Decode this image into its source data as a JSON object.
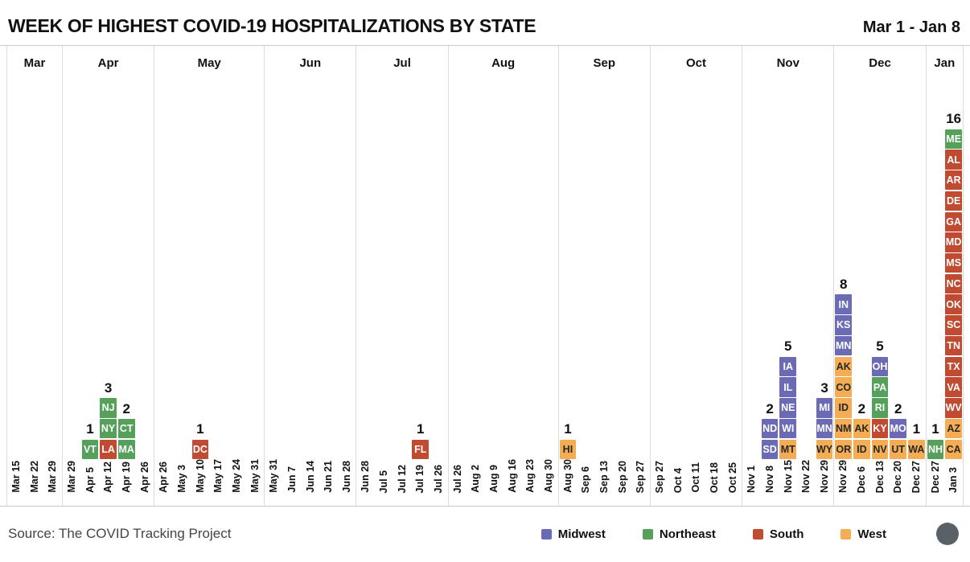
{
  "header": {
    "title": "WEEK OF HIGHEST COVID-19 HOSPITALIZATIONS BY STATE",
    "date_range": "Mar 1 - Jan 8"
  },
  "chart_data": {
    "type": "bar",
    "subtype": "stacked-unit-columns (1 cell = 1 state, stacked per week of peak hospitalizations)",
    "title": "WEEK OF HIGHEST COVID-19 HOSPITALIZATIONS BY STATE",
    "date_range": "Mar 1 - Jan 8",
    "legend_position": "bottom",
    "grid": "monthly panels separated by vertical rules",
    "regions": {
      "MW": {
        "name": "Midwest",
        "color": "#6a6bb4",
        "text": "#ffffff"
      },
      "NE": {
        "name": "Northeast",
        "color": "#55a05a",
        "text": "#ffffff"
      },
      "S": {
        "name": "South",
        "color": "#c04b31",
        "text": "#ffffff"
      },
      "W": {
        "name": "West",
        "color": "#f4ad54",
        "text": "#272727"
      }
    },
    "states_order_note": "states listed top-to-bottom as displayed in each stack",
    "panels": [
      {
        "month": "Mar",
        "weeks": [
          {
            "label": "Mar 15",
            "states": []
          },
          {
            "label": "Mar 22",
            "states": []
          },
          {
            "label": "Mar 29",
            "states": []
          }
        ]
      },
      {
        "month": "Apr",
        "weeks": [
          {
            "label": "Mar 29",
            "states": []
          },
          {
            "label": "Apr 5",
            "count": 1,
            "states": [
              {
                "code": "VT",
                "region": "NE"
              }
            ]
          },
          {
            "label": "Apr 12",
            "count": 3,
            "states": [
              {
                "code": "NJ",
                "region": "NE"
              },
              {
                "code": "NY",
                "region": "NE"
              },
              {
                "code": "LA",
                "region": "S"
              }
            ]
          },
          {
            "label": "Apr 19",
            "count": 2,
            "states": [
              {
                "code": "CT",
                "region": "NE"
              },
              {
                "code": "MA",
                "region": "NE"
              }
            ]
          },
          {
            "label": "Apr 26",
            "states": []
          }
        ]
      },
      {
        "month": "May",
        "weeks": [
          {
            "label": "Apr 26",
            "states": []
          },
          {
            "label": "May 3",
            "states": []
          },
          {
            "label": "May 10",
            "count": 1,
            "states": [
              {
                "code": "DC",
                "region": "S"
              }
            ]
          },
          {
            "label": "May 17",
            "states": []
          },
          {
            "label": "May 24",
            "states": []
          },
          {
            "label": "May 31",
            "states": []
          }
        ]
      },
      {
        "month": "Jun",
        "weeks": [
          {
            "label": "May 31",
            "states": []
          },
          {
            "label": "Jun 7",
            "states": []
          },
          {
            "label": "Jun 14",
            "states": []
          },
          {
            "label": "Jun 21",
            "states": []
          },
          {
            "label": "Jun 28",
            "states": []
          }
        ]
      },
      {
        "month": "Jul",
        "weeks": [
          {
            "label": "Jun 28",
            "states": []
          },
          {
            "label": "Jul 5",
            "states": []
          },
          {
            "label": "Jul 12",
            "states": []
          },
          {
            "label": "Jul 19",
            "count": 1,
            "states": [
              {
                "code": "FL",
                "region": "S"
              }
            ]
          },
          {
            "label": "Jul 26",
            "states": []
          }
        ]
      },
      {
        "month": "Aug",
        "weeks": [
          {
            "label": "Jul 26",
            "states": []
          },
          {
            "label": "Aug 2",
            "states": []
          },
          {
            "label": "Aug 9",
            "states": []
          },
          {
            "label": "Aug 16",
            "states": []
          },
          {
            "label": "Aug 23",
            "states": []
          },
          {
            "label": "Aug 30",
            "states": []
          }
        ]
      },
      {
        "month": "Sep",
        "weeks": [
          {
            "label": "Aug 30",
            "count": 1,
            "states": [
              {
                "code": "HI",
                "region": "W"
              }
            ]
          },
          {
            "label": "Sep 6",
            "states": []
          },
          {
            "label": "Sep 13",
            "states": []
          },
          {
            "label": "Sep 20",
            "states": []
          },
          {
            "label": "Sep 27",
            "states": []
          }
        ]
      },
      {
        "month": "Oct",
        "weeks": [
          {
            "label": "Sep 27",
            "states": []
          },
          {
            "label": "Oct 4",
            "states": []
          },
          {
            "label": "Oct 11",
            "states": []
          },
          {
            "label": "Oct 18",
            "states": []
          },
          {
            "label": "Oct 25",
            "states": []
          }
        ]
      },
      {
        "month": "Nov",
        "weeks": [
          {
            "label": "Nov 1",
            "states": []
          },
          {
            "label": "Nov 8",
            "count": 2,
            "states": [
              {
                "code": "ND",
                "region": "MW"
              },
              {
                "code": "SD",
                "region": "MW"
              }
            ]
          },
          {
            "label": "Nov 15",
            "count": 5,
            "states": [
              {
                "code": "IA",
                "region": "MW"
              },
              {
                "code": "IL",
                "region": "MW"
              },
              {
                "code": "NE",
                "region": "MW"
              },
              {
                "code": "WI",
                "region": "MW"
              },
              {
                "code": "MT",
                "region": "W"
              }
            ]
          },
          {
            "label": "Nov 22",
            "states": []
          },
          {
            "label": "Nov 29",
            "count": 3,
            "states": [
              {
                "code": "MI",
                "region": "MW"
              },
              {
                "code": "MN",
                "region": "MW"
              },
              {
                "code": "WY",
                "region": "W"
              }
            ]
          }
        ]
      },
      {
        "month": "Dec",
        "weeks": [
          {
            "label": "Nov 29",
            "count": 8,
            "states": [
              {
                "code": "IN",
                "region": "MW"
              },
              {
                "code": "KS",
                "region": "MW"
              },
              {
                "code": "MN",
                "region": "MW"
              },
              {
                "code": "AK",
                "region": "W"
              },
              {
                "code": "CO",
                "region": "W"
              },
              {
                "code": "ID",
                "region": "W"
              },
              {
                "code": "NM",
                "region": "W"
              },
              {
                "code": "OR",
                "region": "W"
              }
            ]
          },
          {
            "label": "Dec 6",
            "count": 2,
            "states": [
              {
                "code": "AK",
                "region": "W"
              },
              {
                "code": "ID",
                "region": "W"
              }
            ]
          },
          {
            "label": "Dec 13",
            "count": 5,
            "states": [
              {
                "code": "OH",
                "region": "MW"
              },
              {
                "code": "PA",
                "region": "NE"
              },
              {
                "code": "RI",
                "region": "NE"
              },
              {
                "code": "KY",
                "region": "S"
              },
              {
                "code": "NV",
                "region": "W"
              }
            ]
          },
          {
            "label": "Dec 20",
            "count": 2,
            "states": [
              {
                "code": "MO",
                "region": "MW"
              },
              {
                "code": "UT",
                "region": "W"
              }
            ]
          },
          {
            "label": "Dec 27",
            "count": 1,
            "states": [
              {
                "code": "WA",
                "region": "W"
              }
            ]
          }
        ]
      },
      {
        "month": "Jan",
        "weeks": [
          {
            "label": "Dec 27",
            "count": 1,
            "states": [
              {
                "code": "NH",
                "region": "NE"
              }
            ]
          },
          {
            "label": "Jan 3",
            "count": 16,
            "states": [
              {
                "code": "ME",
                "region": "NE"
              },
              {
                "code": "AL",
                "region": "S"
              },
              {
                "code": "AR",
                "region": "S"
              },
              {
                "code": "DE",
                "region": "S"
              },
              {
                "code": "GA",
                "region": "S"
              },
              {
                "code": "MD",
                "region": "S"
              },
              {
                "code": "MS",
                "region": "S"
              },
              {
                "code": "NC",
                "region": "S"
              },
              {
                "code": "OK",
                "region": "S"
              },
              {
                "code": "SC",
                "region": "S"
              },
              {
                "code": "TN",
                "region": "S"
              },
              {
                "code": "TX",
                "region": "S"
              },
              {
                "code": "VA",
                "region": "S"
              },
              {
                "code": "WV",
                "region": "S"
              },
              {
                "code": "AZ",
                "region": "W"
              },
              {
                "code": "CA",
                "region": "W"
              }
            ]
          }
        ]
      }
    ]
  },
  "footer": {
    "source": "Source: The COVID Tracking Project",
    "legend": [
      {
        "label": "Midwest",
        "color": "#6a6bb4"
      },
      {
        "label": "Northeast",
        "color": "#55a05a"
      },
      {
        "label": "South",
        "color": "#c04b31"
      },
      {
        "label": "West",
        "color": "#f4ad54"
      }
    ],
    "logo": "covid-tracking-project-logo"
  }
}
